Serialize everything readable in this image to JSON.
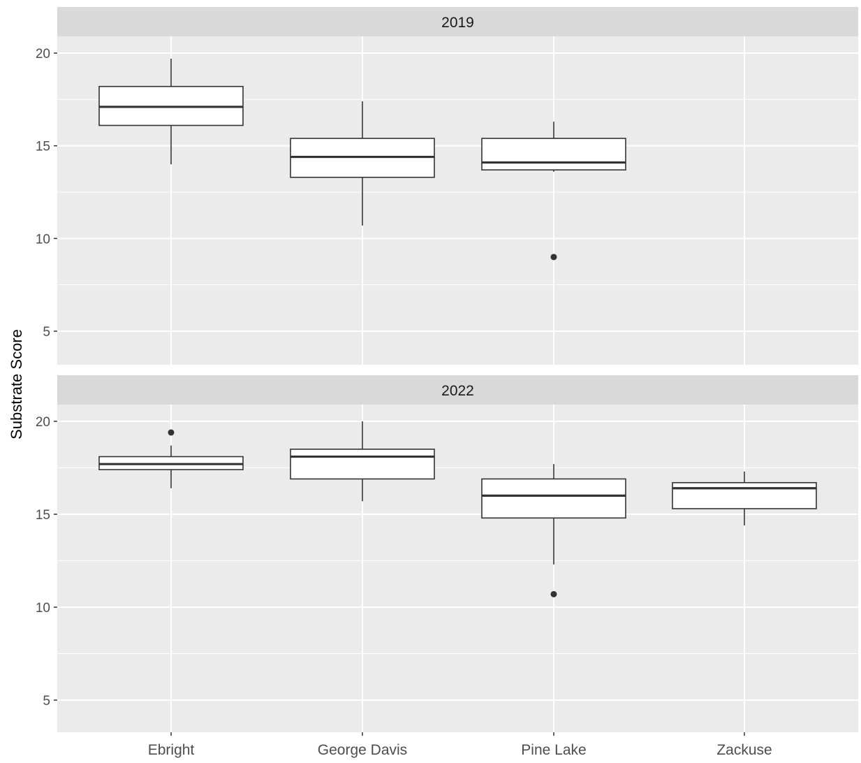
{
  "chart_data": {
    "type": "boxplot",
    "ylabel": "Substrate Score",
    "xlabel": "",
    "categories": [
      "Ebright",
      "George Davis",
      "Pine Lake",
      "Zackuse"
    ],
    "ylim": [
      3.2,
      21.2
    ],
    "y_ticks": [
      5,
      10,
      15,
      20
    ],
    "grid": true,
    "facets": [
      {
        "label": "2019",
        "boxes": [
          {
            "category": "Ebright",
            "lower_whisker": 14.0,
            "q1": 16.1,
            "median": 17.1,
            "q3": 18.2,
            "upper_whisker": 19.7,
            "outliers": []
          },
          {
            "category": "George Davis",
            "lower_whisker": 10.7,
            "q1": 13.3,
            "median": 14.4,
            "q3": 15.4,
            "upper_whisker": 17.4,
            "outliers": []
          },
          {
            "category": "Pine Lake",
            "lower_whisker": 13.6,
            "q1": 13.7,
            "median": 14.1,
            "q3": 15.4,
            "upper_whisker": 16.3,
            "outliers": [
              9.0
            ]
          }
        ]
      },
      {
        "label": "2022",
        "boxes": [
          {
            "category": "Ebright",
            "lower_whisker": 16.4,
            "q1": 17.4,
            "median": 17.7,
            "q3": 18.1,
            "upper_whisker": 18.7,
            "outliers": [
              19.4
            ]
          },
          {
            "category": "George Davis",
            "lower_whisker": 15.7,
            "q1": 16.9,
            "median": 18.1,
            "q3": 18.5,
            "upper_whisker": 20.0,
            "outliers": []
          },
          {
            "category": "Pine Lake",
            "lower_whisker": 12.3,
            "q1": 14.8,
            "median": 16.0,
            "q3": 16.9,
            "upper_whisker": 17.7,
            "outliers": [
              10.7
            ]
          },
          {
            "category": "Zackuse",
            "lower_whisker": 14.4,
            "q1": 15.3,
            "median": 16.4,
            "q3": 16.7,
            "upper_whisker": 17.3,
            "outliers": []
          }
        ]
      }
    ]
  },
  "colors": {
    "panel_background": "#ebebeb",
    "strip_background": "#d9d9d9",
    "grid_line": "#ffffff",
    "box_fill": "#ffffff",
    "box_stroke": "#333333",
    "tick_text": "#4d4d4d",
    "strip_text": "#1a1a1a",
    "axis_title": "#000000"
  }
}
